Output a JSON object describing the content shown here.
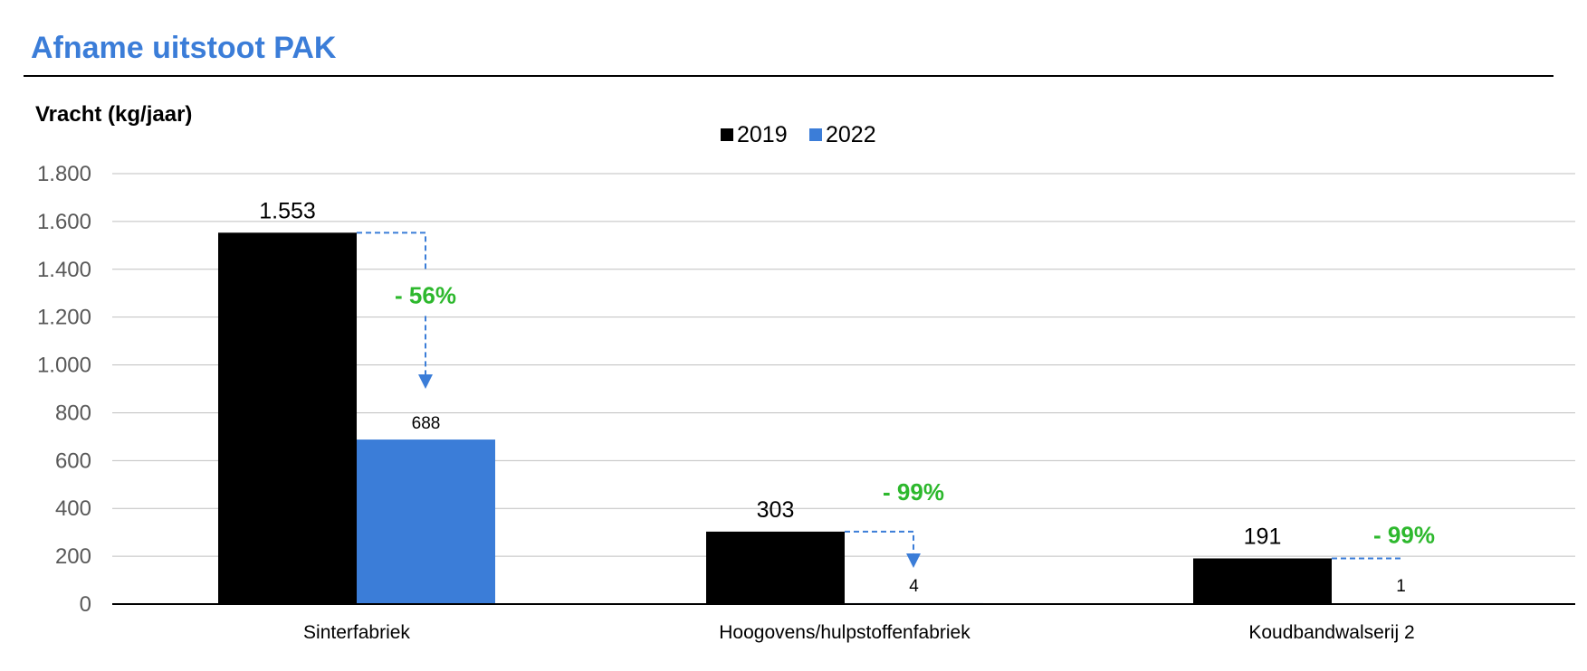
{
  "colors": {
    "title": "#3b7dd8",
    "series_2019": "#000000",
    "series_2022": "#3b7dd8",
    "reduction": "#2db82d",
    "grid": "#bfbfbf",
    "arrow": "#3b7dd8"
  },
  "chart_data": {
    "type": "bar",
    "title": "Afname uitstoot PAK",
    "ylabel": "Vracht (kg/jaar)",
    "ylim": [
      0,
      1800
    ],
    "yticks": [
      0,
      200,
      400,
      600,
      800,
      1000,
      1200,
      1400,
      1600,
      1800
    ],
    "ytick_labels": [
      "0",
      "200",
      "400",
      "600",
      "800",
      "1.000",
      "1.200",
      "1.400",
      "1.600",
      "1.800"
    ],
    "grid": true,
    "legend_position": "top-center",
    "categories": [
      "Sinterfabriek",
      "Hoogovens/hulpstoffenfabriek",
      "Koudbandwalserij 2"
    ],
    "series": [
      {
        "name": "2019",
        "values": [
          1553,
          303,
          191
        ],
        "labels": [
          "1.553",
          "303",
          "191"
        ]
      },
      {
        "name": "2022",
        "values": [
          688,
          4,
          1
        ],
        "labels": [
          "688",
          "4",
          "1"
        ]
      }
    ],
    "annotations": [
      "- 56%",
      "- 99%",
      "- 99%"
    ]
  }
}
